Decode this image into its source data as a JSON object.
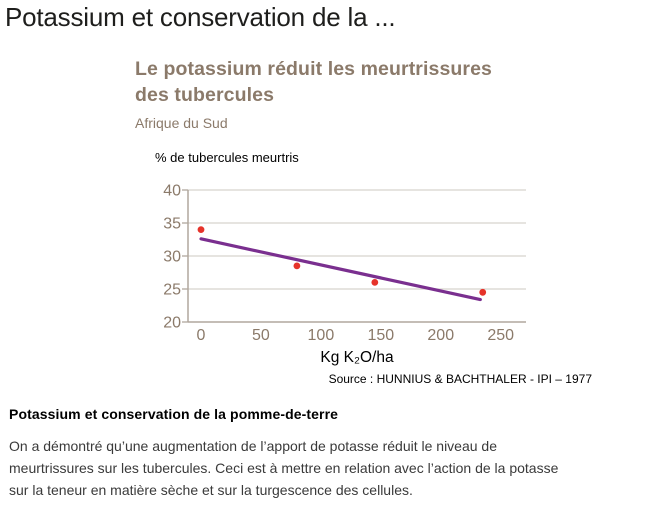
{
  "page": {
    "title": "Potassium et conservation de la ..."
  },
  "figure": {
    "title_lines": [
      "Le potassium réduit les meurtrissures",
      "des tubercules"
    ],
    "subtitle": "Afrique du Sud"
  },
  "chart_data": {
    "type": "scatter",
    "title": "Le potassium réduit les meurtrissures des tubercules",
    "subtitle": "Afrique du Sud",
    "ylabel": "% de tubercules meurtris",
    "xlabel": "Kg K₂O/ha",
    "source": "Source : HUNNIUS & BACHTHALER - IPI – 1977",
    "x_ticks": [
      0,
      50,
      100,
      150,
      200,
      250
    ],
    "y_ticks": [
      20,
      25,
      30,
      35,
      40
    ],
    "xlim": [
      0,
      272
    ],
    "ylim": [
      20,
      40
    ],
    "grid": true,
    "legend": "none",
    "points": [
      {
        "x": 0,
        "y": 34
      },
      {
        "x": 80,
        "y": 28.5
      },
      {
        "x": 145,
        "y": 26
      },
      {
        "x": 235,
        "y": 24.5
      }
    ],
    "trendline": {
      "x1": 0,
      "y1": 32.6,
      "x2": 233,
      "y2": 23.4
    },
    "colors": {
      "point": "#e6332a",
      "trend": "#7a2f8f",
      "grid": "#d8d3ce",
      "axis": "#b1a79d",
      "label": "#8b7a6a"
    }
  },
  "caption": {
    "heading": "Potassium et conservation de la pomme-de-terre",
    "body_lines": [
      "On a démontré qu’une augmentation de l’apport de potasse réduit le niveau de",
      "meurtrissures sur les tubercules. Ceci est à mettre en relation avec l’action de la potasse",
      "sur la teneur en matière sèche et sur la turgescence des cellules."
    ]
  }
}
